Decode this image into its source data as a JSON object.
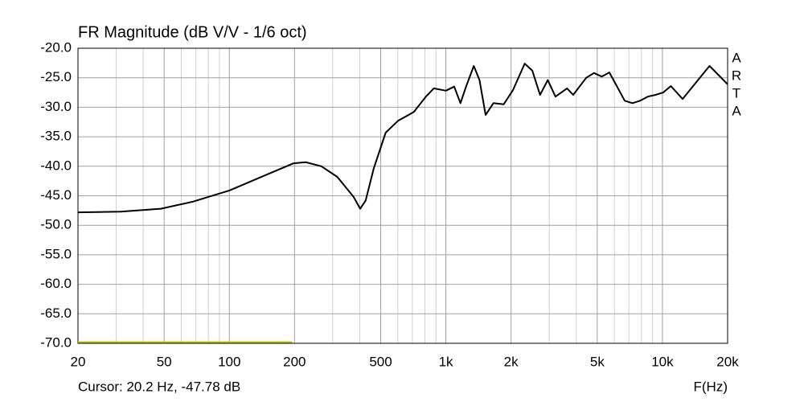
{
  "chart_data": {
    "type": "line",
    "title": "FR Magnitude (dB V/V - 1/6 oct)",
    "side_label": [
      "A",
      "R",
      "T",
      "A"
    ],
    "cursor_text": "Cursor: 20.2 Hz, -47.78 dB",
    "x_label": "F(Hz)",
    "x_scale": "log",
    "grid": true,
    "xlim": [
      20,
      20000
    ],
    "ylim": [
      -70,
      -20
    ],
    "xticks": [
      20,
      50,
      100,
      200,
      500,
      {
        "value": 1000,
        "label": "1k"
      },
      {
        "value": 2000,
        "label": "2k"
      },
      {
        "value": 5000,
        "label": "5k"
      },
      {
        "value": 10000,
        "label": "10k"
      },
      {
        "value": 20000,
        "label": "20k"
      }
    ],
    "xminor": [
      30,
      40,
      60,
      70,
      80,
      90,
      300,
      400,
      600,
      700,
      800,
      900,
      3000,
      4000,
      6000,
      7000,
      8000,
      9000
    ],
    "yticks": [
      {
        "value": -20,
        "label": "-20.0"
      },
      {
        "value": -25,
        "label": "-25.0"
      },
      {
        "value": -30,
        "label": "-30.0"
      },
      {
        "value": -35,
        "label": "-35.0"
      },
      {
        "value": -40,
        "label": "-40.0"
      },
      {
        "value": -45,
        "label": "-45.0"
      },
      {
        "value": -50,
        "label": "-50.0"
      },
      {
        "value": -55,
        "label": "-55.0"
      },
      {
        "value": -60,
        "label": "-60.0"
      },
      {
        "value": -65,
        "label": "-65.0"
      },
      {
        "value": -70,
        "label": "-70.0"
      }
    ],
    "series": [
      {
        "color": "#000000",
        "x": [
          20,
          31.5,
          48.3,
          67.9,
          100,
          147,
          198,
          225,
          266,
          315,
          375,
          402,
          426,
          464,
          527,
          601,
          711,
          808,
          880,
          1000,
          1092,
          1167,
          1239,
          1346,
          1430,
          1526,
          1658,
          1849,
          2041,
          2311,
          2508,
          2722,
          2955,
          3207,
          3627,
          3872,
          4451,
          4829,
          5241,
          5688,
          6172,
          6697,
          7267,
          7886,
          8558,
          9287,
          10078,
          10936,
          12386,
          14587,
          16498,
          20000
        ],
        "values": [
          -47.8,
          -47.7,
          -47.2,
          -46.0,
          -44.1,
          -41.5,
          -39.5,
          -39.3,
          -40.0,
          -41.8,
          -45.2,
          -47.2,
          -45.8,
          -40.4,
          -34.3,
          -32.3,
          -30.8,
          -28.2,
          -26.8,
          -27.2,
          -26.5,
          -29.3,
          -26.5,
          -23.0,
          -25.4,
          -31.3,
          -29.3,
          -29.5,
          -27.1,
          -22.6,
          -23.8,
          -27.9,
          -25.4,
          -28.2,
          -26.8,
          -27.9,
          -25.0,
          -24.2,
          -24.8,
          -24.1,
          -26.5,
          -28.9,
          -29.3,
          -28.9,
          -28.2,
          -27.9,
          -27.5,
          -26.4,
          -28.6,
          -25.4,
          -23.0,
          -26.1
        ]
      },
      {
        "color": "#c8c800",
        "x": [
          20,
          195
        ],
        "values": [
          -69.8,
          -69.8
        ]
      }
    ]
  }
}
